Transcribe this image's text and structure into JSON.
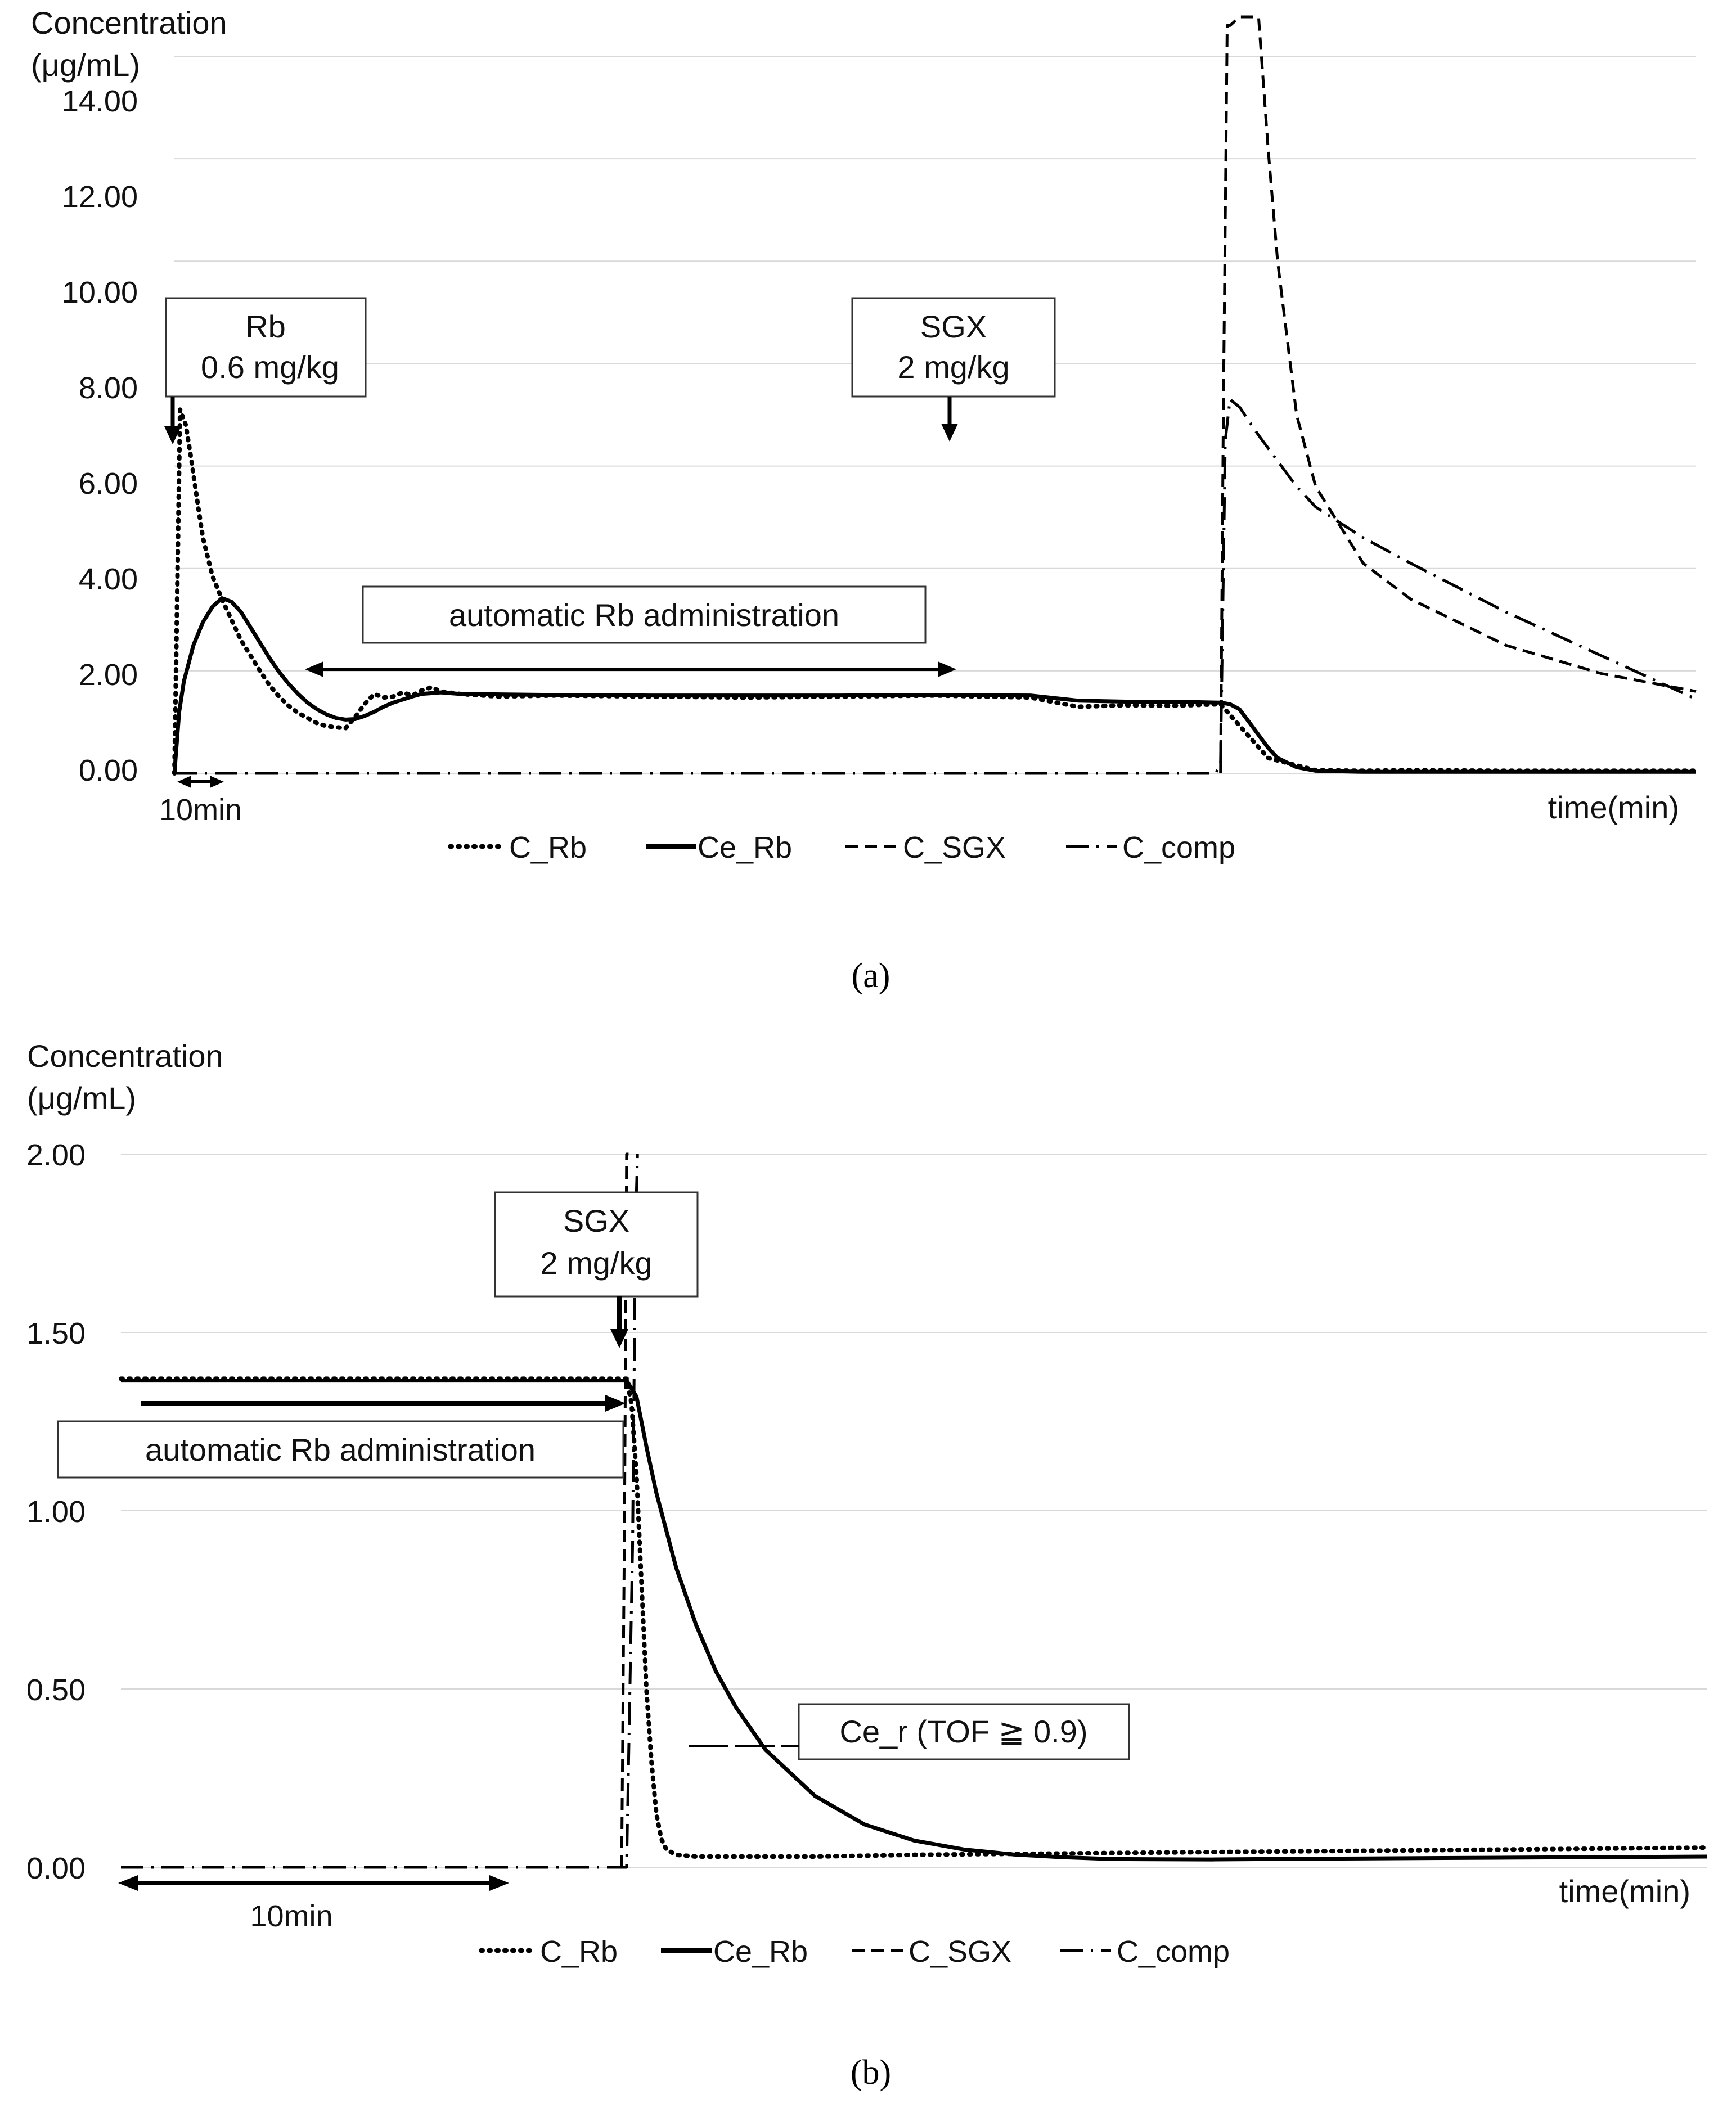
{
  "chart_data": [
    {
      "panel": "a",
      "type": "line",
      "caption": "(a)",
      "ylabel_line1": "Concentration",
      "ylabel_line2": "(μg/mL)",
      "xlabel": "time(min)",
      "ylim": [
        0,
        14
      ],
      "xlim": [
        0,
        160
      ],
      "yticks": [
        "0.00",
        "2.00",
        "4.00",
        "6.00",
        "8.00",
        "10.00",
        "12.00",
        "14.00"
      ],
      "ytick_values": [
        0,
        2,
        4,
        6,
        8,
        10,
        12,
        14
      ],
      "legend": [
        "C_Rb",
        "Ce_Rb",
        "C_SGX",
        "C_comp"
      ],
      "annotations": {
        "rb_box_line1": "Rb",
        "rb_box_line2": "0.6 mg/kg",
        "sgx_box_line1": "SGX",
        "sgx_box_line2": "2 mg/kg",
        "auto_box": "automatic Rb administration",
        "ten_min": "10min"
      },
      "series": [
        {
          "name": "C_Rb",
          "style": "dotted",
          "x": [
            0,
            0.6,
            1.2,
            1.8,
            2.5,
            3,
            4,
            5,
            6,
            7,
            8,
            9,
            10,
            11,
            12,
            13,
            14,
            15,
            16,
            17,
            18,
            19,
            20,
            21,
            22,
            23,
            24,
            25,
            26,
            27,
            28,
            30,
            34,
            40,
            50,
            60,
            70,
            80,
            90,
            95,
            100,
            105,
            110,
            115,
            120,
            125,
            130,
            140,
            150,
            160
          ],
          "y": [
            0,
            7.1,
            6.8,
            6.1,
            5.2,
            4.6,
            3.85,
            3.4,
            3.0,
            2.6,
            2.3,
            2.0,
            1.72,
            1.5,
            1.32,
            1.18,
            1.08,
            0.98,
            0.92,
            0.9,
            0.88,
            1.1,
            1.35,
            1.55,
            1.48,
            1.5,
            1.58,
            1.52,
            1.62,
            1.68,
            1.6,
            1.55,
            1.5,
            1.52,
            1.5,
            1.48,
            1.5,
            1.52,
            1.48,
            1.3,
            1.33,
            1.32,
            1.35,
            0.3,
            0.06,
            0.05,
            0.06,
            0.05,
            0.05,
            0.05
          ]
        },
        {
          "name": "Ce_Rb",
          "style": "solid",
          "x": [
            0,
            0.5,
            1,
            2,
            3,
            4,
            5,
            6,
            7,
            8,
            9,
            10,
            11,
            12,
            13,
            14,
            15,
            16,
            17,
            18,
            19,
            20,
            21,
            22,
            23,
            24,
            25,
            26,
            28,
            30,
            40,
            50,
            60,
            70,
            80,
            90,
            95,
            100,
            105,
            110,
            111,
            112,
            113,
            114,
            115,
            116,
            118,
            120,
            125,
            130,
            140,
            150,
            160
          ],
          "y": [
            0,
            1.2,
            1.8,
            2.5,
            2.95,
            3.25,
            3.42,
            3.35,
            3.15,
            2.85,
            2.55,
            2.25,
            1.98,
            1.75,
            1.55,
            1.38,
            1.25,
            1.15,
            1.08,
            1.05,
            1.06,
            1.12,
            1.2,
            1.3,
            1.38,
            1.44,
            1.5,
            1.55,
            1.58,
            1.55,
            1.53,
            1.52,
            1.52,
            1.52,
            1.53,
            1.52,
            1.42,
            1.4,
            1.4,
            1.38,
            1.35,
            1.25,
            1.0,
            0.75,
            0.5,
            0.3,
            0.12,
            0.05,
            0.03,
            0.03,
            0.03,
            0.03,
            0.03
          ]
        },
        {
          "name": "C_SGX",
          "style": "dashed",
          "x": [
            110,
            110.3,
            110.7,
            111,
            112,
            113,
            114,
            115,
            116,
            118,
            120,
            125,
            130,
            140,
            150,
            160
          ],
          "y": [
            0,
            7.2,
            14.6,
            14.6,
            14.8,
            14.9,
            14.9,
            12.2,
            10.0,
            7.0,
            5.6,
            4.1,
            3.4,
            2.5,
            1.95,
            1.6
          ]
        },
        {
          "name": "C_comp",
          "style": "dashdot",
          "x": [
            0,
            108,
            109.5,
            110,
            110.5,
            111,
            112,
            114,
            116,
            118,
            120,
            125,
            130,
            140,
            150,
            160
          ],
          "y": [
            0,
            0,
            0,
            0.2,
            6.5,
            7.3,
            7.15,
            6.6,
            6.1,
            5.6,
            5.2,
            4.6,
            4.1,
            3.15,
            2.3,
            1.45
          ]
        }
      ]
    },
    {
      "panel": "b",
      "type": "line",
      "caption": "(b)",
      "ylabel_line1": "Concentration",
      "ylabel_line2": "(μg/mL)",
      "xlabel": "time(min)",
      "ylim": [
        0,
        2
      ],
      "xlim": [
        0,
        160
      ],
      "yticks": [
        "0.00",
        "0.50",
        "1.00",
        "1.50",
        "2.00"
      ],
      "ytick_values": [
        0,
        0.5,
        1,
        1.5,
        2
      ],
      "legend": [
        "C_Rb",
        "Ce_Rb",
        "C_SGX",
        "C_comp"
      ],
      "annotations": {
        "sgx_box_line1": "SGX",
        "sgx_box_line2": "2 mg/kg",
        "auto_box": "automatic Rb administration",
        "cer_box": "Ce_r (TOF ≧ 0.9)",
        "ten_min": "10min"
      },
      "cer_level": 0.34,
      "series": [
        {
          "name": "C_Rb",
          "style": "dotted",
          "x": [
            0,
            20,
            40,
            51,
            51.5,
            52,
            52.5,
            53,
            53.5,
            54,
            54.5,
            55,
            56,
            58,
            62,
            70,
            80,
            100,
            120,
            140,
            160
          ],
          "y": [
            1.37,
            1.37,
            1.37,
            1.37,
            1.3,
            1.1,
            0.8,
            0.5,
            0.3,
            0.15,
            0.08,
            0.05,
            0.035,
            0.03,
            0.03,
            0.03,
            0.035,
            0.04,
            0.045,
            0.05,
            0.055
          ]
        },
        {
          "name": "Ce_Rb",
          "style": "solid",
          "x": [
            0,
            20,
            40,
            51,
            52,
            53,
            54,
            56,
            58,
            60,
            62,
            65,
            70,
            75,
            80,
            85,
            90,
            95,
            100,
            110,
            120,
            140,
            160
          ],
          "y": [
            1.365,
            1.365,
            1.365,
            1.365,
            1.32,
            1.18,
            1.05,
            0.84,
            0.68,
            0.55,
            0.45,
            0.33,
            0.2,
            0.12,
            0.075,
            0.05,
            0.036,
            0.028,
            0.023,
            0.022,
            0.024,
            0.027,
            0.03
          ]
        },
        {
          "name": "C_SGX",
          "style": "dashed",
          "x": [
            50.5,
            50.8,
            51,
            51.2
          ],
          "y": [
            0,
            1.0,
            2.0,
            2.0
          ]
        },
        {
          "name": "C_comp",
          "style": "dashdot",
          "x": [
            0,
            51,
            51.6,
            51.9,
            52.1
          ],
          "y": [
            0,
            0,
            0.9,
            1.8,
            2.0
          ]
        }
      ]
    }
  ]
}
